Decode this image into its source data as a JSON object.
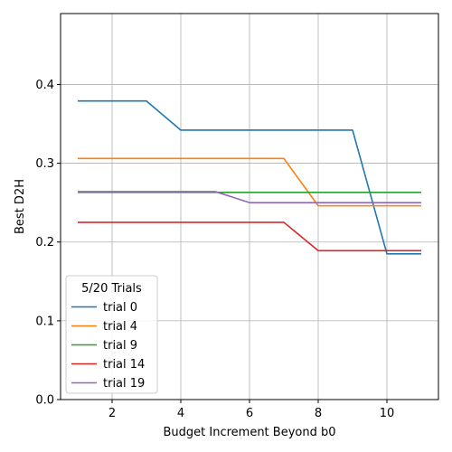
{
  "chart_data": {
    "type": "line",
    "title": "",
    "xlabel": "Budget Increment Beyond b0",
    "ylabel": "Best D2H",
    "xlim": [
      0.5,
      11.5
    ],
    "ylim": [
      0.0,
      0.49
    ],
    "x_ticks": [
      2,
      4,
      6,
      8,
      10
    ],
    "x_tick_labels": [
      "2",
      "4",
      "6",
      "8",
      "10"
    ],
    "y_ticks": [
      0.0,
      0.1,
      0.2,
      0.3,
      0.4
    ],
    "y_tick_labels": [
      "0.0",
      "0.1",
      "0.2",
      "0.3",
      "0.4"
    ],
    "grid": true,
    "legend": {
      "title": "5/20 Trials",
      "position": "lower-left"
    },
    "x": [
      1,
      2,
      3,
      4,
      5,
      6,
      7,
      8,
      9,
      10,
      11
    ],
    "series": [
      {
        "name": "trial 0",
        "color": "#1f77b4",
        "values": [
          0.379,
          0.379,
          0.379,
          0.342,
          0.342,
          0.342,
          0.342,
          0.342,
          0.342,
          0.185,
          0.185
        ]
      },
      {
        "name": "trial 4",
        "color": "#ff7f0e",
        "values": [
          0.306,
          0.306,
          0.306,
          0.306,
          0.306,
          0.306,
          0.306,
          0.246,
          0.246,
          0.246,
          0.246
        ]
      },
      {
        "name": "trial 9",
        "color": "#2ca02c",
        "values": [
          0.263,
          0.263,
          0.263,
          0.263,
          0.263,
          0.263,
          0.263,
          0.263,
          0.263,
          0.263,
          0.263
        ]
      },
      {
        "name": "trial 14",
        "color": "#d62728",
        "values": [
          0.225,
          0.225,
          0.225,
          0.225,
          0.225,
          0.225,
          0.225,
          0.189,
          0.189,
          0.189,
          0.189
        ]
      },
      {
        "name": "trial 19",
        "color": "#9467bd",
        "values": [
          0.264,
          0.264,
          0.264,
          0.264,
          0.264,
          0.25,
          0.25,
          0.25,
          0.25,
          0.25,
          0.25
        ]
      }
    ]
  }
}
